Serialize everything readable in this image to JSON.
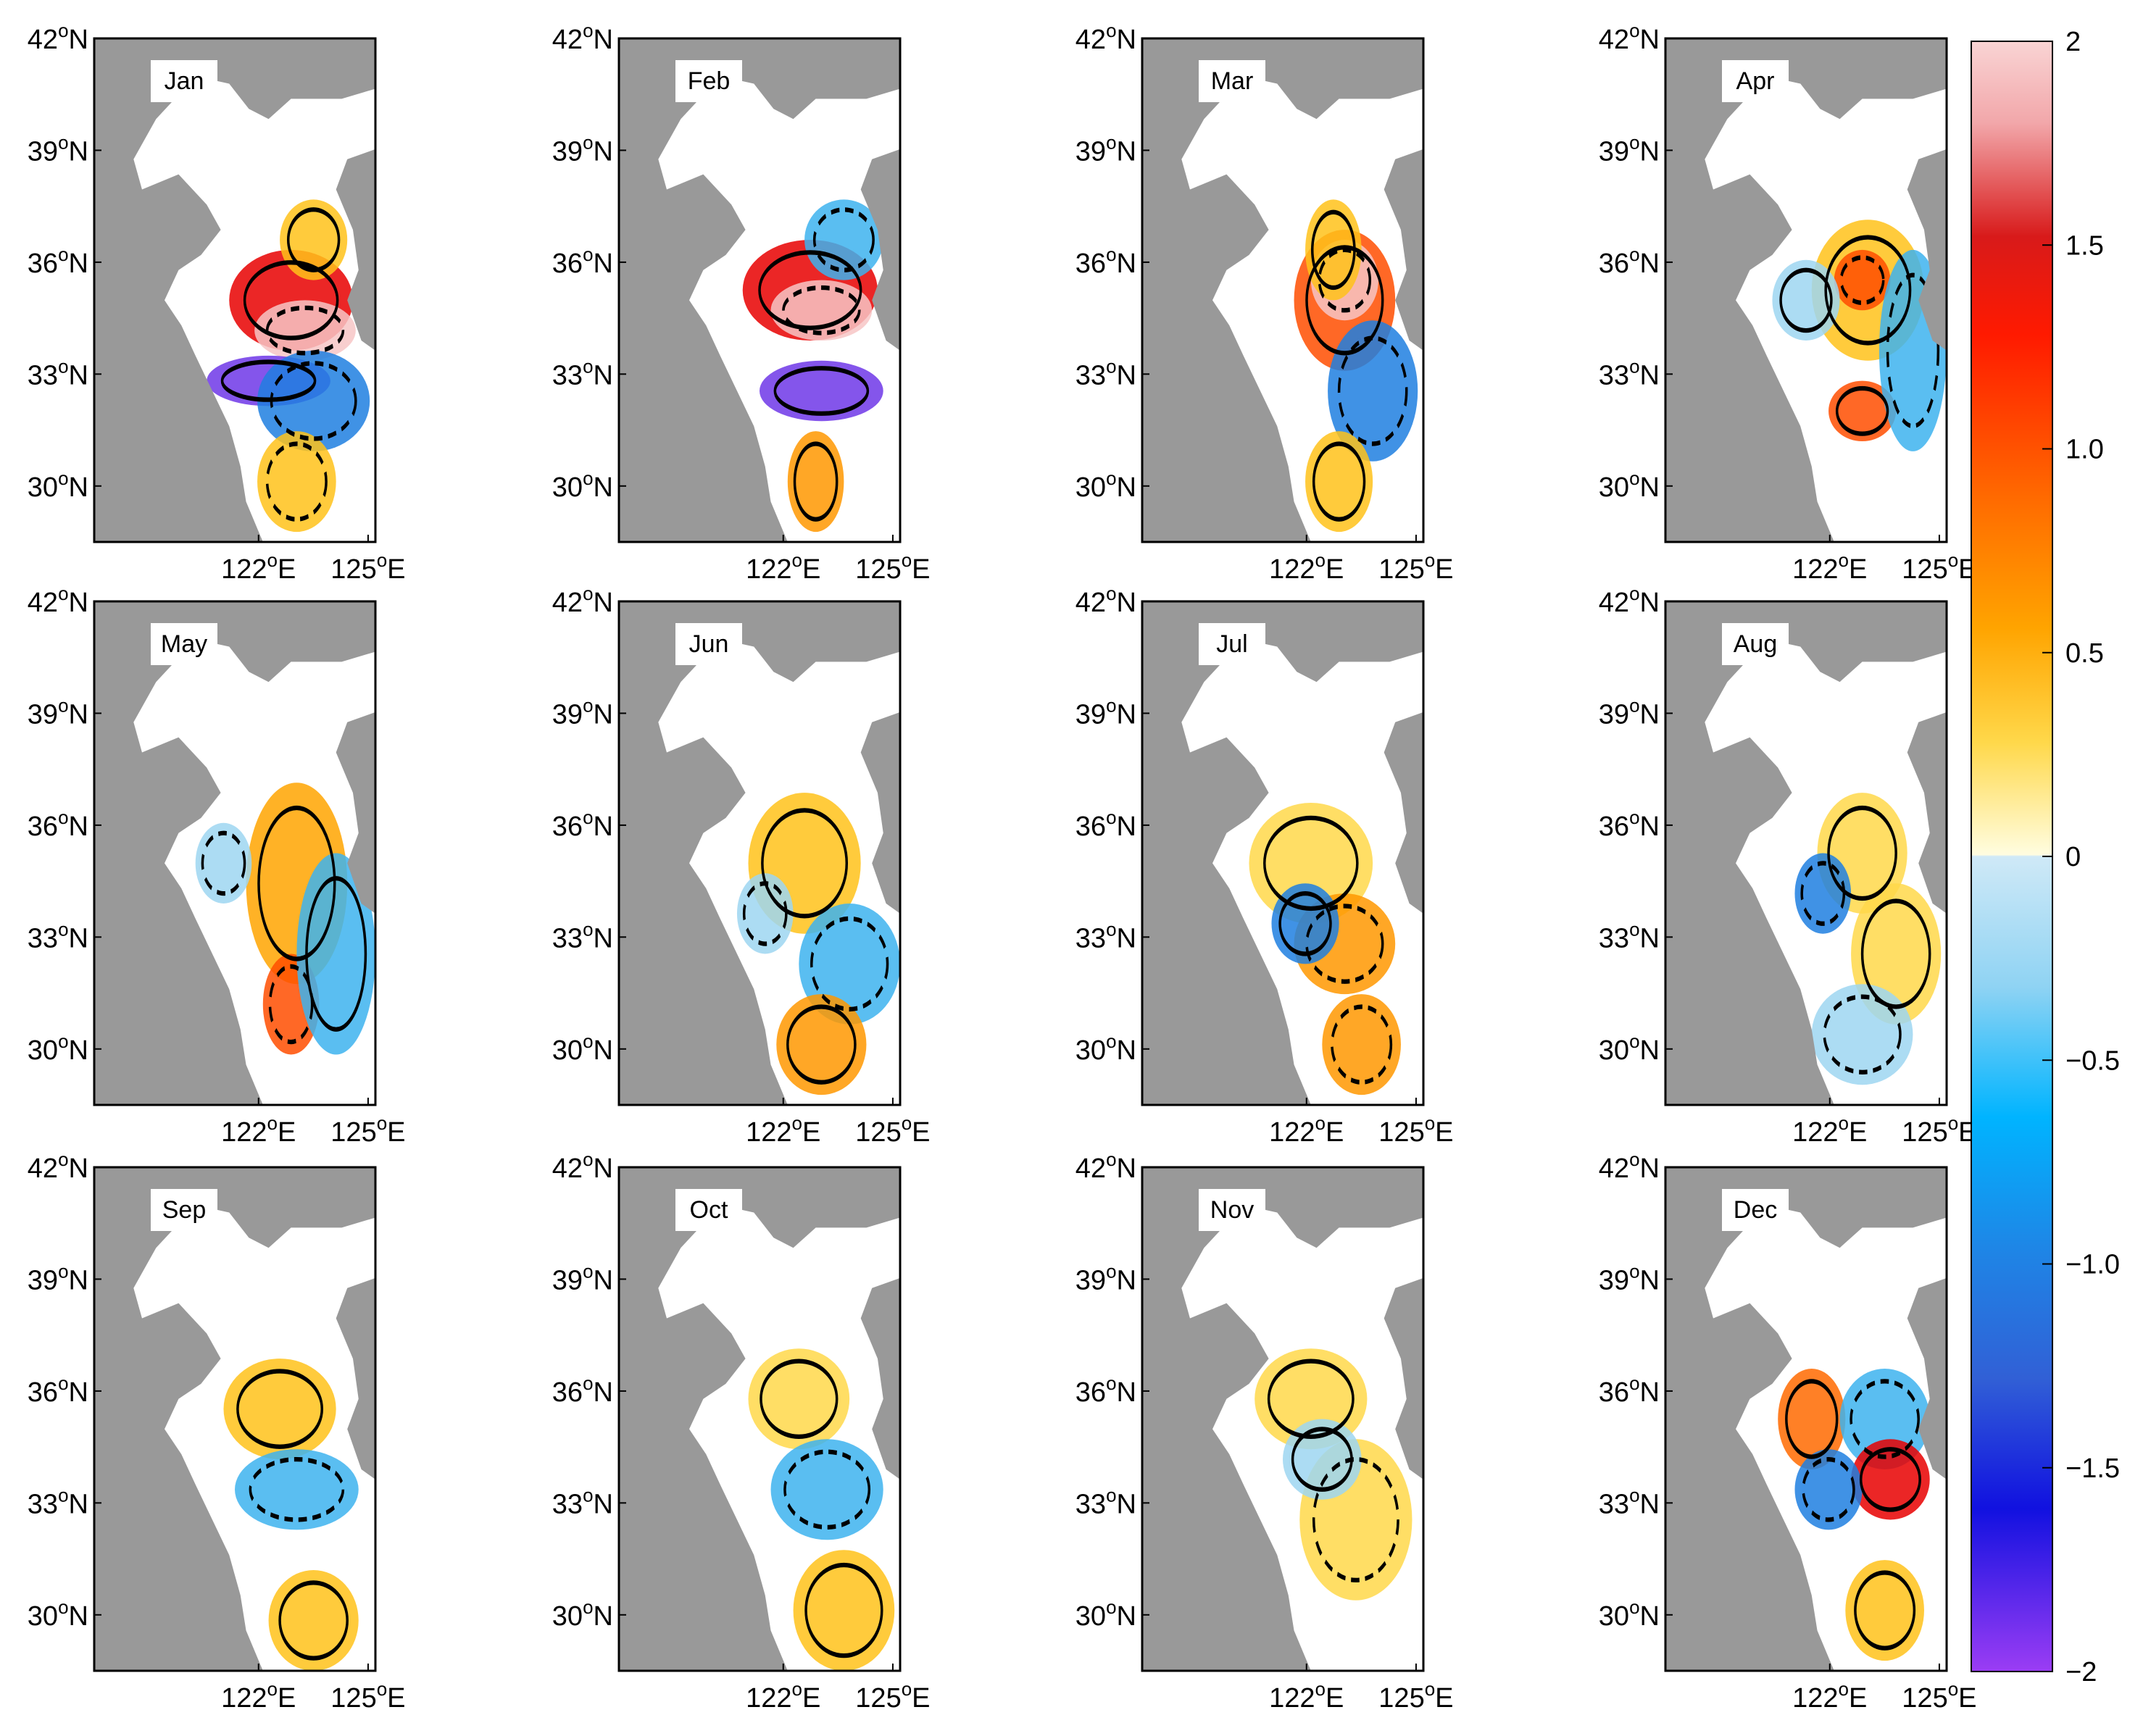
{
  "figure": {
    "months": [
      "Jan",
      "Feb",
      "Mar",
      "Apr",
      "May",
      "Jun",
      "Jul",
      "Aug",
      "Sep",
      "Oct",
      "Nov",
      "Dec"
    ],
    "y_ticks": [
      {
        "value": 42,
        "label": "42",
        "suffix": "N"
      },
      {
        "value": 39,
        "label": "39",
        "suffix": "N"
      },
      {
        "value": 36,
        "label": "36",
        "suffix": "N"
      },
      {
        "value": 33,
        "label": "33",
        "suffix": "N"
      },
      {
        "value": 30,
        "label": "30",
        "suffix": "N"
      }
    ],
    "x_ticks": [
      {
        "value": 122,
        "label": "122",
        "suffix": "E"
      },
      {
        "value": 125,
        "label": "125",
        "suffix": "E"
      }
    ],
    "degree_symbol": "o",
    "lat_range": [
      28.5,
      42
    ],
    "lon_range": [
      117.5,
      125.2
    ],
    "land_color": "#999999",
    "sea_color": "#ffffff",
    "contour_color": "#000000"
  },
  "colorbar": {
    "ticks": [
      "2",
      "1.5",
      "1.0",
      "0.5",
      "0",
      "−1.0",
      "−1.5",
      "−2"
    ],
    "tick_values": [
      2,
      1.5,
      1.0,
      0.5,
      0,
      -1.0,
      -1.5,
      -2
    ],
    "extra_ticks": [
      {
        "value": -0.5,
        "label": "−0.5"
      }
    ],
    "range": [
      -2,
      2
    ],
    "colors_positive": [
      "#fffbd0",
      "#ffe08a",
      "#ffc21a",
      "#ff9800",
      "#ff4d00",
      "#e80000",
      "#c80000",
      "#e66b70",
      "#f7c6c6"
    ],
    "colors_negative": [
      "#c6e6f6",
      "#9dd6f1",
      "#3db3ee",
      "#00aaff",
      "#1e7fe0",
      "#2f5fd9",
      "#1a1adf",
      "#6f37e8",
      "#9a3cf2"
    ]
  }
}
